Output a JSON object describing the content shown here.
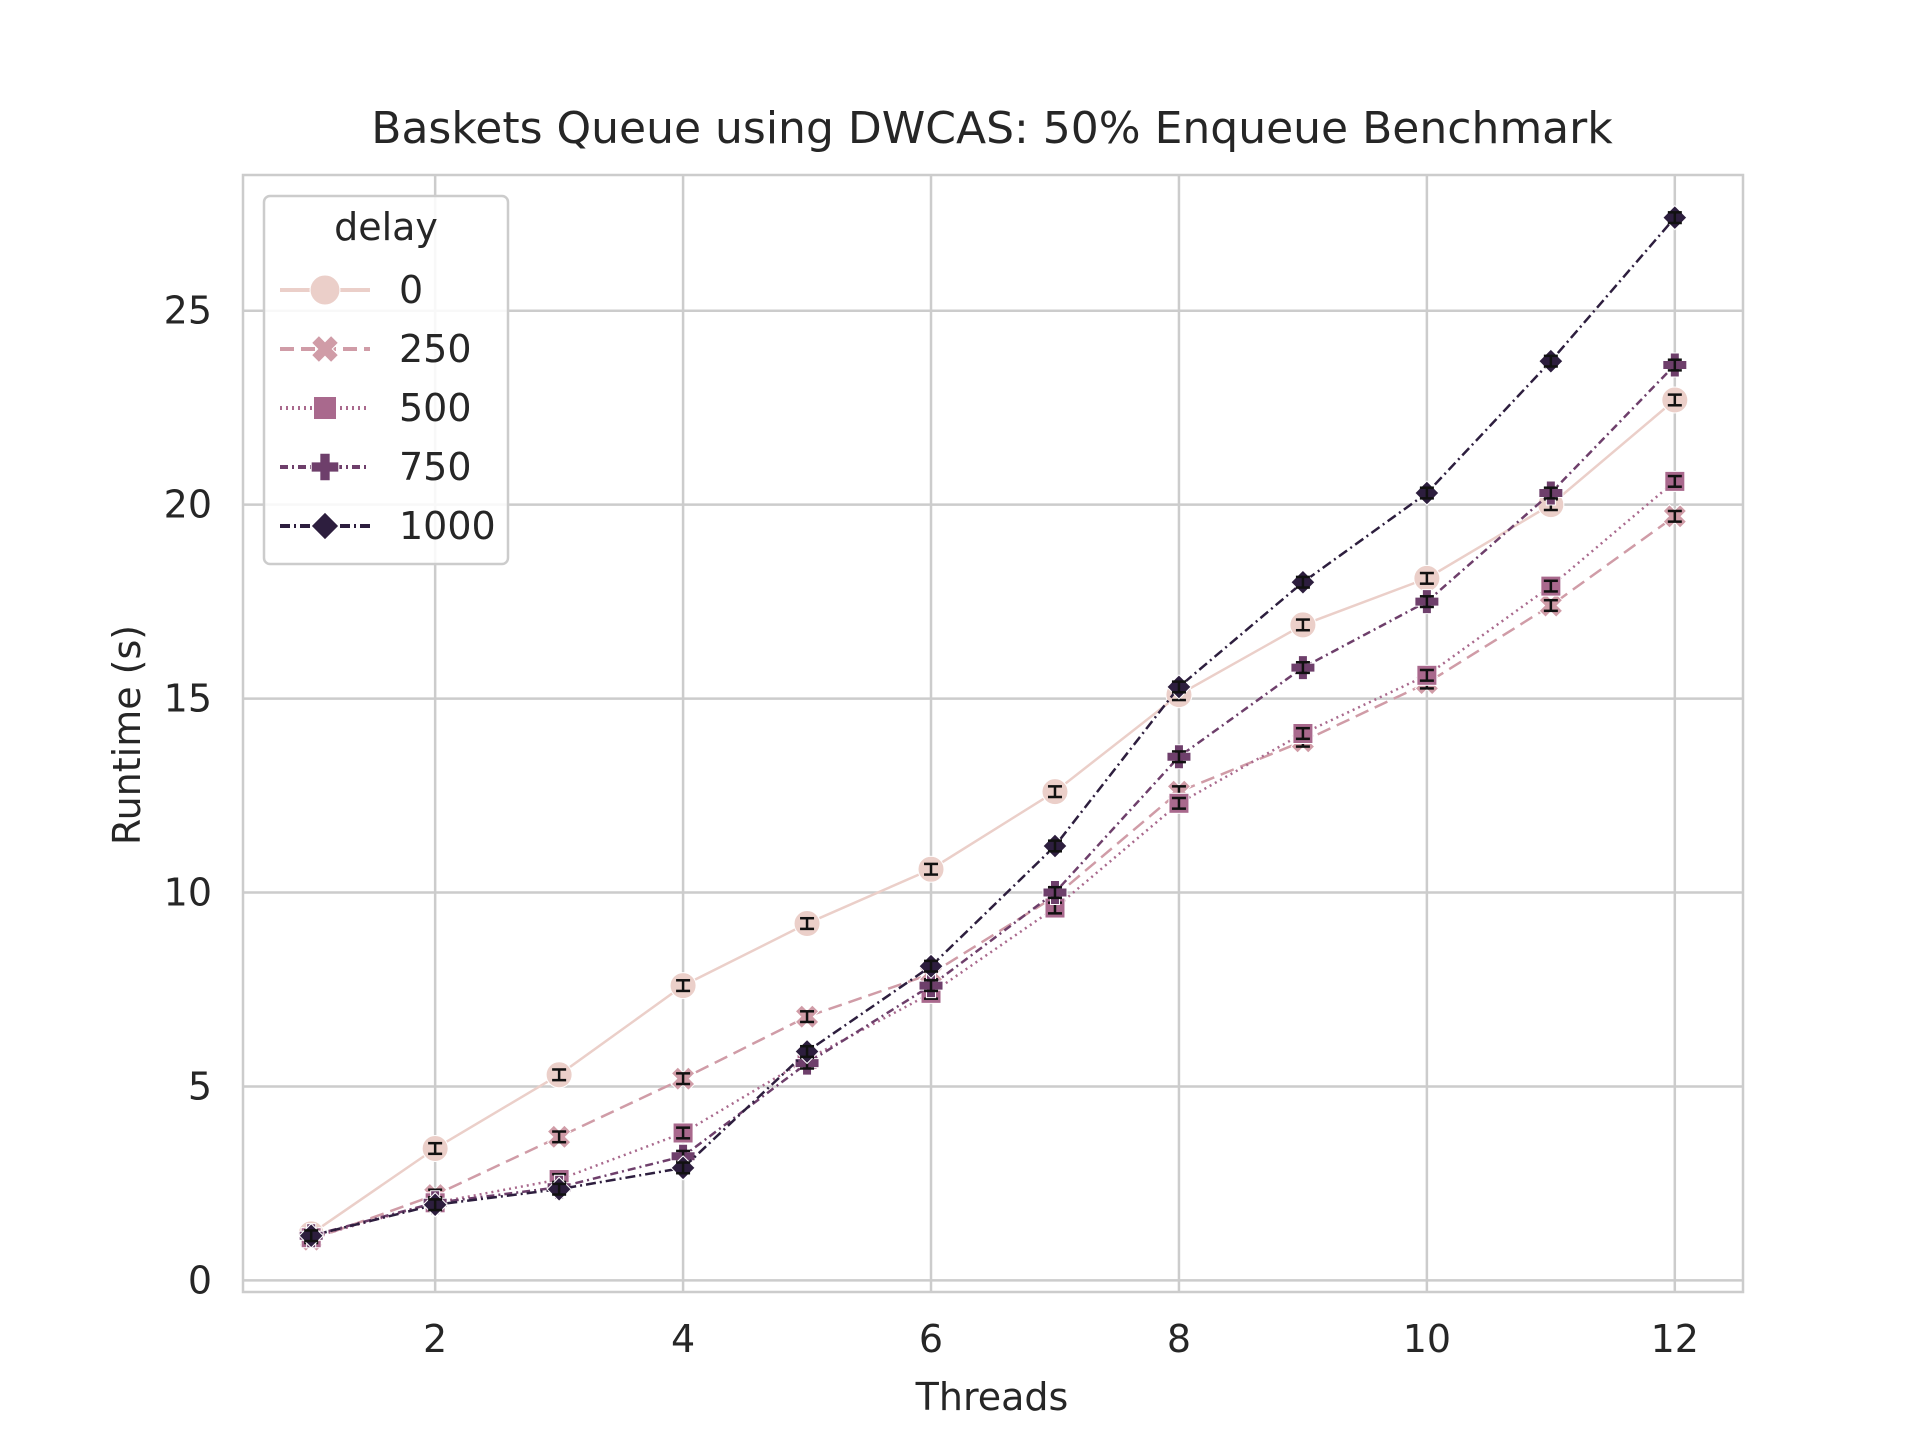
{
  "chart_data": {
    "type": "line",
    "title": "Baskets Queue using DWCAS: 50% Enqueue Benchmark",
    "xlabel": "Threads",
    "ylabel": "Runtime (s)",
    "xlim": [
      0.45,
      12.55
    ],
    "ylim": [
      -0.3,
      28.5
    ],
    "xticks": [
      2,
      4,
      6,
      8,
      10,
      12
    ],
    "yticks": [
      0,
      5,
      10,
      15,
      20,
      25
    ],
    "grid": true,
    "legend": {
      "title": "delay",
      "placement": "top-left"
    },
    "x": [
      1,
      2,
      3,
      4,
      5,
      6,
      7,
      8,
      9,
      10,
      11,
      12
    ],
    "series": [
      {
        "name": "0",
        "color": "#ebcfc9",
        "marker": "circle",
        "dash": "",
        "error": 0.06,
        "values": [
          1.2,
          3.4,
          5.3,
          7.6,
          9.2,
          10.6,
          12.6,
          15.1,
          16.9,
          18.1,
          20.0,
          22.7
        ]
      },
      {
        "name": "250",
        "color": "#d09ca7",
        "marker": "x",
        "dash": "14,7",
        "error": 0.06,
        "values": [
          1.05,
          2.2,
          3.7,
          5.2,
          6.8,
          7.9,
          9.9,
          12.6,
          13.9,
          15.4,
          17.4,
          19.7
        ]
      },
      {
        "name": "500",
        "color": "#a9698d",
        "marker": "square",
        "dash": "2,4",
        "error": 0.06,
        "values": [
          1.1,
          2.0,
          2.6,
          3.8,
          5.7,
          7.4,
          9.6,
          12.3,
          14.1,
          15.6,
          17.9,
          20.6
        ]
      },
      {
        "name": "750",
        "color": "#6e3f6b",
        "marker": "plus",
        "dash": "8,4,2,4",
        "error": 0.06,
        "values": [
          1.15,
          2.0,
          2.4,
          3.2,
          5.6,
          7.6,
          10.0,
          13.5,
          15.8,
          17.5,
          20.3,
          23.6
        ]
      },
      {
        "name": "1000",
        "color": "#2d1e3e",
        "marker": "diamond",
        "dash": "10,4,2,4",
        "error": 0.06,
        "values": [
          1.15,
          1.95,
          2.35,
          2.9,
          5.9,
          8.1,
          11.2,
          15.3,
          18.0,
          20.3,
          23.7,
          27.4
        ]
      }
    ]
  }
}
